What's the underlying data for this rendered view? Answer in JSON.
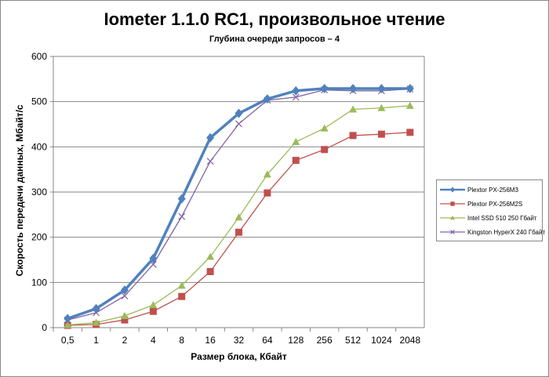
{
  "chart_data": {
    "type": "line",
    "title": "Iometer 1.1.0 RC1, произвольное чтение",
    "subtitle": "Глубина очереди запросов – 4",
    "xlabel": "Размер блока, Кбайт",
    "ylabel": "Скорость передачи данных, Мбайт/с",
    "ylim": [
      0,
      600
    ],
    "yticks": [
      "0",
      "100",
      "200",
      "300",
      "400",
      "500",
      "600"
    ],
    "categories": [
      "0,5",
      "1",
      "2",
      "4",
      "8",
      "16",
      "32",
      "64",
      "128",
      "256",
      "512",
      "1024",
      "2048"
    ],
    "grid": true,
    "legend_position": "right",
    "series": [
      {
        "name": "Plextor PX-256M3",
        "color": "#4f81bd",
        "marker": "diamond",
        "values": [
          20,
          42,
          83,
          153,
          285,
          420,
          474,
          506,
          524,
          529,
          529,
          529,
          529
        ]
      },
      {
        "name": "Plextor PX-256M2S",
        "color": "#c0504d",
        "marker": "square",
        "values": [
          5,
          7,
          17,
          36,
          69,
          124,
          211,
          298,
          370,
          394,
          425,
          428,
          432
        ]
      },
      {
        "name": "Intel SSD 510 250 Гбайт",
        "color": "#9bbb59",
        "marker": "triangle",
        "values": [
          6,
          11,
          26,
          50,
          93,
          157,
          244,
          339,
          411,
          441,
          483,
          486,
          491
        ]
      },
      {
        "name": "Kingston HyperX 240 Гбайт",
        "color": "#8064a2",
        "marker": "x",
        "values": [
          17,
          33,
          70,
          140,
          246,
          368,
          451,
          503,
          510,
          526,
          524,
          524,
          528
        ]
      }
    ]
  }
}
